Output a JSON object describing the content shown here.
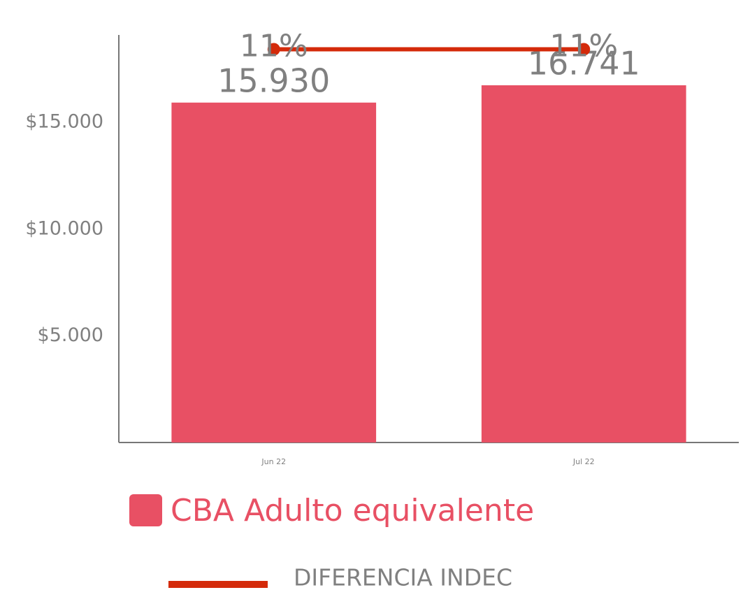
{
  "chart_data": {
    "type": "bar",
    "categories": [
      "Jun 22",
      "Jul 22"
    ],
    "series": [
      {
        "name": "CBA Adulto equivalente",
        "type": "bar",
        "color": "#e85064",
        "values": [
          15930,
          16741
        ],
        "value_labels": [
          "15.930",
          "16.741"
        ]
      },
      {
        "name": "DIFERENCIA INDEC",
        "type": "line",
        "axis": "y2",
        "color": "#d42a0a",
        "values": [
          11,
          11
        ],
        "value_labels": [
          "11%",
          "11%"
        ]
      }
    ],
    "ylim": [
      0,
      19100
    ],
    "yticks": [
      {
        "value": 5000,
        "label": "$5.000"
      },
      {
        "value": 10000,
        "label": "$10.000"
      },
      {
        "value": 15000,
        "label": "$15.000"
      }
    ],
    "y2lim": [
      0,
      11.4
    ],
    "grid": false
  }
}
